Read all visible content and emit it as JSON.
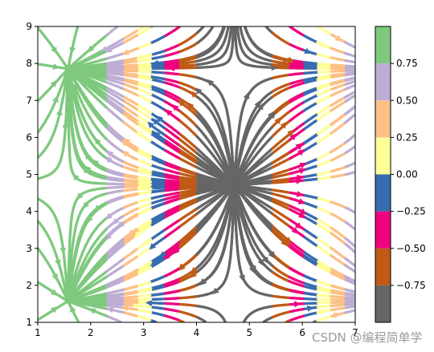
{
  "chart_data": {
    "type": "streamplot",
    "x_domain": [
      1,
      7
    ],
    "y_domain": [
      1,
      9
    ],
    "x_ticks": [
      1,
      2,
      3,
      4,
      5,
      6,
      7
    ],
    "y_ticks": [
      1,
      2,
      3,
      4,
      5,
      6,
      7,
      8,
      9
    ],
    "field": "U = cos(x), V = cos(y); color = sin(x)",
    "colormap_name": "Accent",
    "colorbar": {
      "range": [
        -1,
        1
      ],
      "colors": [
        "#666666",
        "#bf5b17",
        "#f0027f",
        "#386cb0",
        "#ffff99",
        "#fdc086",
        "#beaed4",
        "#7fc97f"
      ],
      "tick_values": [
        -0.75,
        -0.5,
        -0.25,
        0.0,
        0.25,
        0.5,
        0.75
      ],
      "tick_labels": [
        "−0.75",
        "−0.50",
        "−0.25",
        "0.00",
        "0.25",
        "0.50",
        "0.75"
      ]
    },
    "title": "",
    "xlabel": "",
    "ylabel": ""
  },
  "watermark": "CSDN @编程简单学"
}
